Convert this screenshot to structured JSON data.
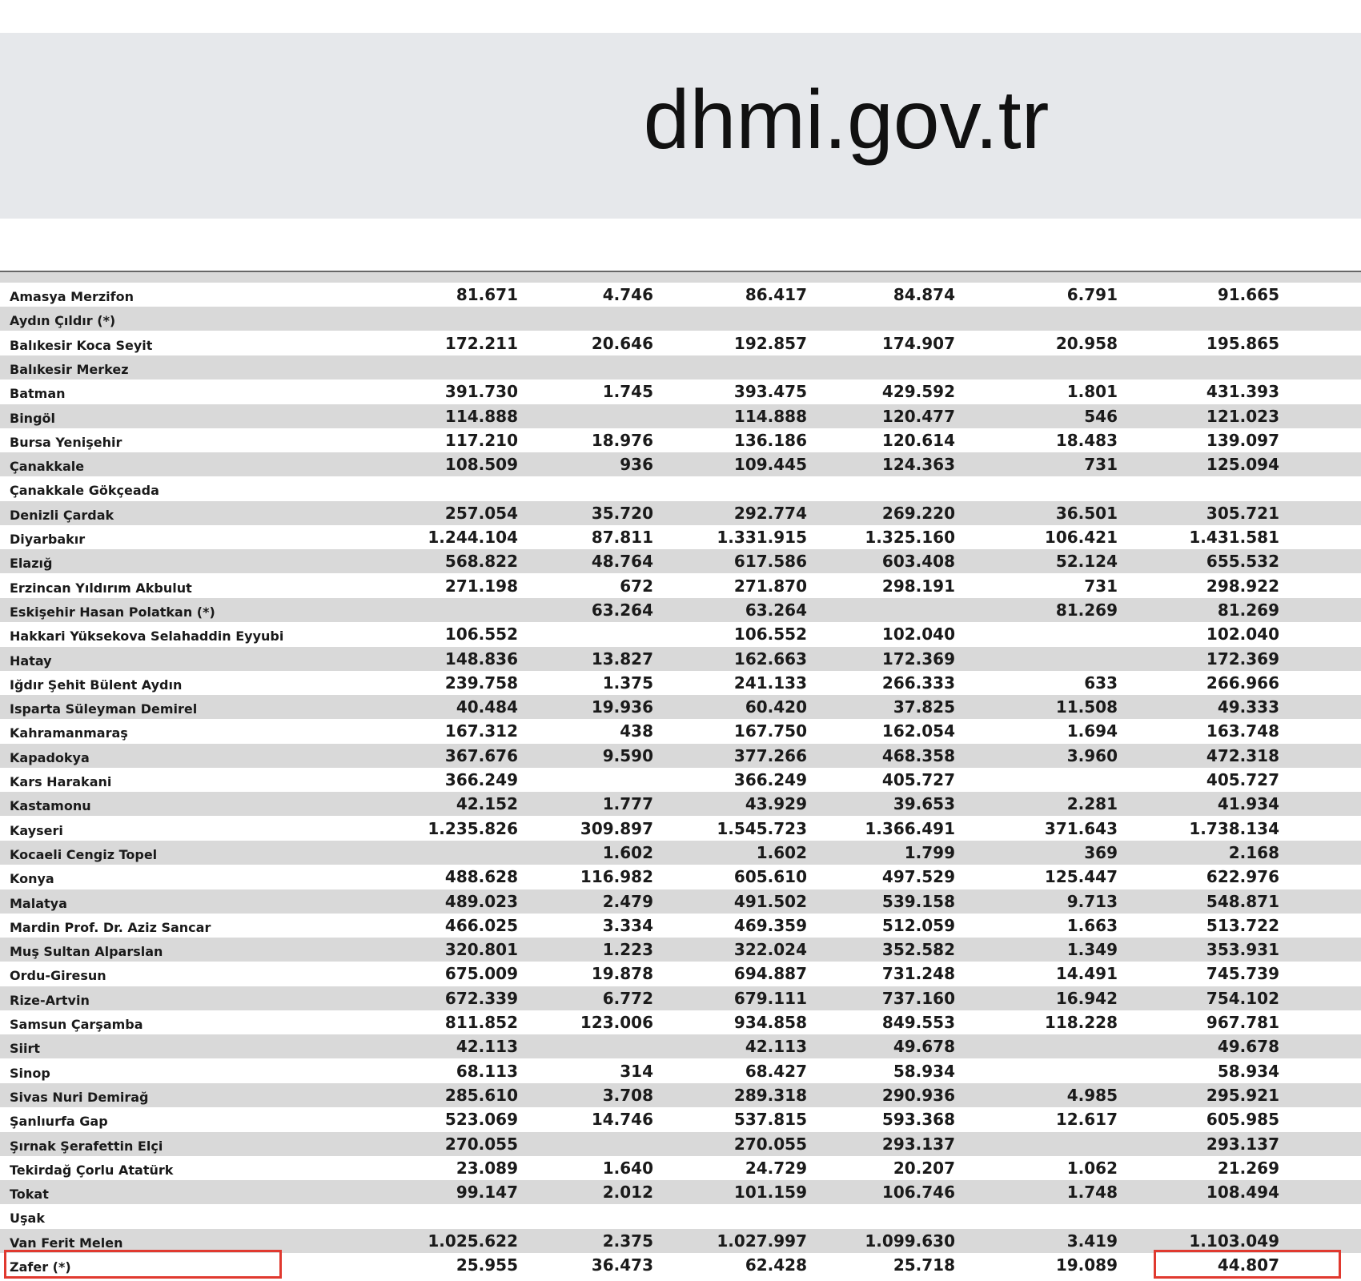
{
  "header": {
    "site": "dhmi.gov.tr"
  },
  "table": {
    "rows": [
      [
        "Amasya Merzifon",
        "81.671",
        "4.746",
        "86.417",
        "84.874",
        "6.791",
        "91.665"
      ],
      [
        "Aydın Çıldır (*)",
        null,
        null,
        null,
        null,
        null,
        null
      ],
      [
        "Balıkesir Koca Seyit",
        "172.211",
        "20.646",
        "192.857",
        "174.907",
        "20.958",
        "195.865"
      ],
      [
        "Balıkesir Merkez",
        null,
        null,
        null,
        null,
        null,
        null
      ],
      [
        "Batman",
        "391.730",
        "1.745",
        "393.475",
        "429.592",
        "1.801",
        "431.393"
      ],
      [
        "Bingöl",
        "114.888",
        null,
        "114.888",
        "120.477",
        "546",
        "121.023"
      ],
      [
        "Bursa Yenişehir",
        "117.210",
        "18.976",
        "136.186",
        "120.614",
        "18.483",
        "139.097"
      ],
      [
        "Çanakkale",
        "108.509",
        "936",
        "109.445",
        "124.363",
        "731",
        "125.094"
      ],
      [
        "Çanakkale Gökçeada",
        null,
        null,
        null,
        null,
        null,
        null
      ],
      [
        "Denizli Çardak",
        "257.054",
        "35.720",
        "292.774",
        "269.220",
        "36.501",
        "305.721"
      ],
      [
        "Diyarbakır",
        "1.244.104",
        "87.811",
        "1.331.915",
        "1.325.160",
        "106.421",
        "1.431.581"
      ],
      [
        "Elazığ",
        "568.822",
        "48.764",
        "617.586",
        "603.408",
        "52.124",
        "655.532"
      ],
      [
        "Erzincan Yıldırım Akbulut",
        "271.198",
        "672",
        "271.870",
        "298.191",
        "731",
        "298.922"
      ],
      [
        "Eskişehir Hasan Polatkan (*)",
        null,
        "63.264",
        "63.264",
        null,
        "81.269",
        "81.269"
      ],
      [
        "Hakkari Yüksekova Selahaddin Eyyubi",
        "106.552",
        null,
        "106.552",
        "102.040",
        null,
        "102.040"
      ],
      [
        "Hatay",
        "148.836",
        "13.827",
        "162.663",
        "172.369",
        null,
        "172.369"
      ],
      [
        "Iğdır Şehit Bülent Aydın",
        "239.758",
        "1.375",
        "241.133",
        "266.333",
        "633",
        "266.966"
      ],
      [
        "Isparta Süleyman Demirel",
        "40.484",
        "19.936",
        "60.420",
        "37.825",
        "11.508",
        "49.333"
      ],
      [
        "Kahramanmaraş",
        "167.312",
        "438",
        "167.750",
        "162.054",
        "1.694",
        "163.748"
      ],
      [
        "Kapadokya",
        "367.676",
        "9.590",
        "377.266",
        "468.358",
        "3.960",
        "472.318"
      ],
      [
        "Kars Harakani",
        "366.249",
        null,
        "366.249",
        "405.727",
        null,
        "405.727"
      ],
      [
        "Kastamonu",
        "42.152",
        "1.777",
        "43.929",
        "39.653",
        "2.281",
        "41.934"
      ],
      [
        "Kayseri",
        "1.235.826",
        "309.897",
        "1.545.723",
        "1.366.491",
        "371.643",
        "1.738.134"
      ],
      [
        "Kocaeli Cengiz Topel",
        null,
        "1.602",
        "1.602",
        "1.799",
        "369",
        "2.168"
      ],
      [
        "Konya",
        "488.628",
        "116.982",
        "605.610",
        "497.529",
        "125.447",
        "622.976"
      ],
      [
        "Malatya",
        "489.023",
        "2.479",
        "491.502",
        "539.158",
        "9.713",
        "548.871"
      ],
      [
        "Mardin Prof. Dr. Aziz Sancar",
        "466.025",
        "3.334",
        "469.359",
        "512.059",
        "1.663",
        "513.722"
      ],
      [
        "Muş Sultan Alparslan",
        "320.801",
        "1.223",
        "322.024",
        "352.582",
        "1.349",
        "353.931"
      ],
      [
        "Ordu-Giresun",
        "675.009",
        "19.878",
        "694.887",
        "731.248",
        "14.491",
        "745.739"
      ],
      [
        "Rize-Artvin",
        "672.339",
        "6.772",
        "679.111",
        "737.160",
        "16.942",
        "754.102"
      ],
      [
        "Samsun Çarşamba",
        "811.852",
        "123.006",
        "934.858",
        "849.553",
        "118.228",
        "967.781"
      ],
      [
        "Siirt",
        "42.113",
        null,
        "42.113",
        "49.678",
        null,
        "49.678"
      ],
      [
        "Sinop",
        "68.113",
        "314",
        "68.427",
        "58.934",
        null,
        "58.934"
      ],
      [
        "Sivas Nuri Demirağ",
        "285.610",
        "3.708",
        "289.318",
        "290.936",
        "4.985",
        "295.921"
      ],
      [
        "Şanlıurfa Gap",
        "523.069",
        "14.746",
        "537.815",
        "593.368",
        "12.617",
        "605.985"
      ],
      [
        "Şırnak Şerafettin Elçi",
        "270.055",
        null,
        "270.055",
        "293.137",
        null,
        "293.137"
      ],
      [
        "Tekirdağ Çorlu Atatürk",
        "23.089",
        "1.640",
        "24.729",
        "20.207",
        "1.062",
        "21.269"
      ],
      [
        "Tokat",
        "99.147",
        "2.012",
        "101.159",
        "106.746",
        "1.748",
        "108.494"
      ],
      [
        "Uşak",
        null,
        null,
        null,
        null,
        null,
        null
      ],
      [
        "Van Ferit Melen",
        "1.025.622",
        "2.375",
        "1.027.997",
        "1.099.630",
        "3.419",
        "1.103.049"
      ],
      [
        "Zafer (*)",
        "25.955",
        "36.473",
        "62.428",
        "25.718",
        "19.089",
        "44.807"
      ]
    ]
  }
}
